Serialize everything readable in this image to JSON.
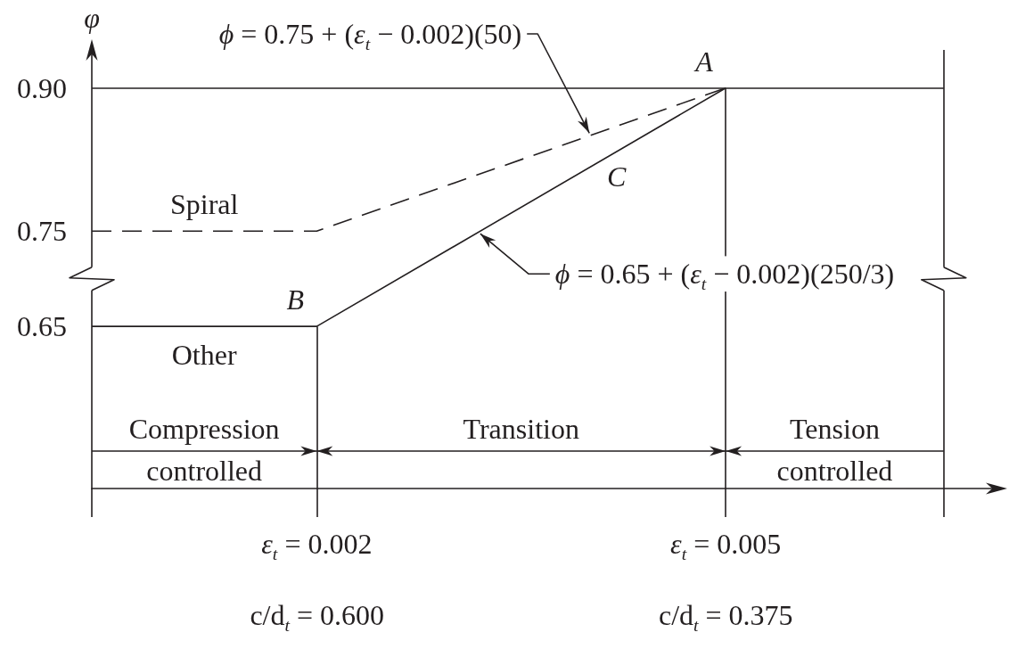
{
  "chart_data": {
    "type": "line",
    "ylabel": "φ",
    "series": [
      {
        "name": "Spiral",
        "color": "#231f20",
        "line_style": "dashed",
        "x": [
          0.00035,
          0.002,
          0.005
        ],
        "values": [
          0.75,
          0.75,
          0.9
        ]
      },
      {
        "name": "Other",
        "color": "#231f20",
        "line_style": "solid",
        "x": [
          0.00035,
          0.002,
          0.005
        ],
        "values": [
          0.65,
          0.65,
          0.9
        ]
      }
    ],
    "xlim": [
      0.00035,
      0.007
    ],
    "xticks": [
      {
        "value": 0.00035,
        "label": null
      },
      {
        "value": 0.002,
        "label": "ε$_{t}$ = 0.002"
      },
      {
        "value": 0.005,
        "label": "ε$_{t}$ = 0.005"
      },
      {
        "value": 0.0066,
        "label": null
      }
    ],
    "x2lim": [
      0.724,
      0.225
    ],
    "x2ticks": [
      {
        "value": 0.6,
        "label": "c/d$_{t}$ = 0.600"
      },
      {
        "value": 0.375,
        "label": "c/d$_{t}$ = 0.375"
      }
    ],
    "ylim": [
      0.48,
      0.94
    ],
    "yticks": [
      {
        "value": 0.65,
        "label": "0.65"
      },
      {
        "value": 0.75,
        "label": "0.75"
      },
      {
        "value": 0.9,
        "label": "0.90"
      }
    ],
    "ref_lines": [
      {
        "axis": "y",
        "value": 0.9
      },
      {
        "axis": "x",
        "value": 0.002
      },
      {
        "axis": "x",
        "value": 0.005
      },
      {
        "axis": "x",
        "value": 0.0066
      }
    ],
    "annotations": [
      {
        "text": "ϕ = 0.75 + (ε$_{t}$ − 0.002)(50)",
        "x": 0.004,
        "y": 0.85
      },
      {
        "text": "A",
        "x": 0.005,
        "y": 0.9
      },
      {
        "text": "C",
        "x": 0.0042,
        "y": 0.833
      },
      {
        "text": "ϕ = 0.65 + (ε$_{t}$ − 0.002)(250/3)",
        "x": 0.0032,
        "y": 0.75
      },
      {
        "text": "B",
        "x": 0.002,
        "y": 0.65
      },
      "Compression\ncontrolled",
      "Transition",
      "Tension\ncontrolled"
    ]
  }
}
